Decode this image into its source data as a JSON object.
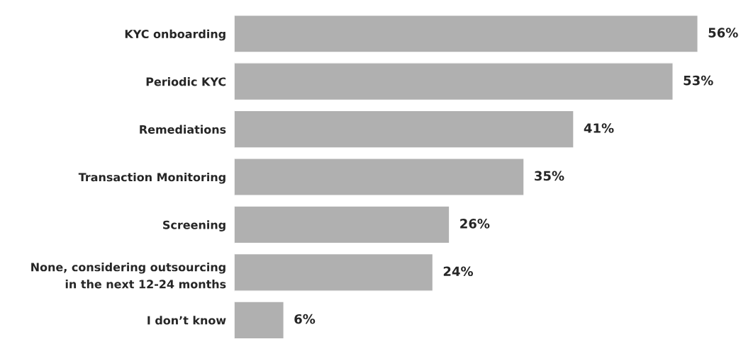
{
  "chart_data": {
    "type": "bar",
    "orientation": "horizontal",
    "categories": [
      "KYC onboarding",
      "Periodic KYC",
      "Remediations",
      "Transaction Monitoring",
      "Screening",
      "None, considering outsourcing\nin the next 12-24 months",
      "I don’t know"
    ],
    "values": [
      56,
      53,
      41,
      35,
      26,
      24,
      6
    ],
    "value_labels": [
      "56%",
      "53%",
      "41%",
      "35%",
      "26%",
      "24%",
      "6%"
    ],
    "color": "#b0b0b0",
    "tick_labels": "y",
    "grid": false,
    "legend": false
  }
}
